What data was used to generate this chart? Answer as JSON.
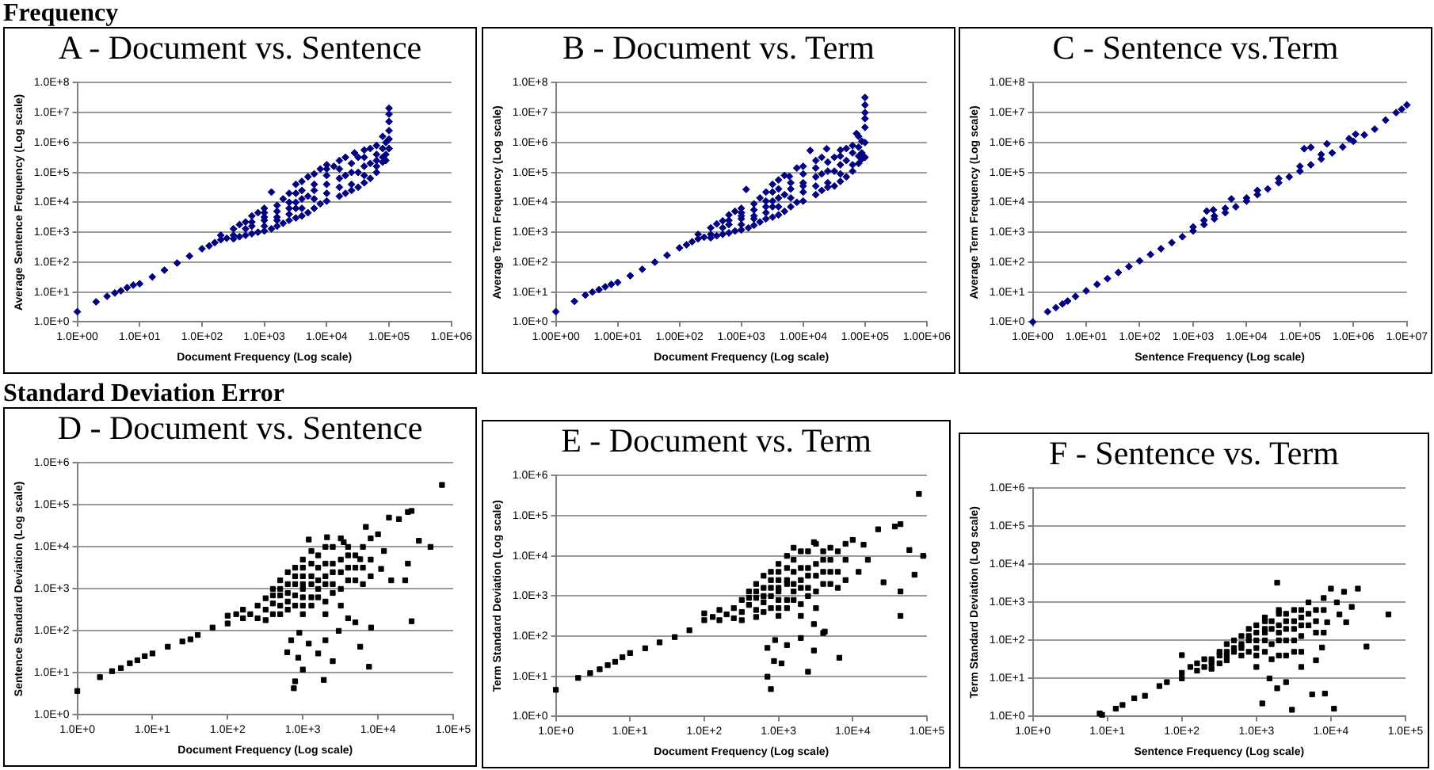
{
  "chart_data": [
    {
      "type": "scatter",
      "title": "A - Document vs. Sentence",
      "annotations": [
        "Frequency"
      ],
      "xlabel": "Document Frequency (Log scale)",
      "ylabel": "Average Sentence Frequency (Log scale)",
      "log": "xy",
      "grid": "y",
      "marker": "diamond",
      "xlim": [
        1,
        1000000
      ],
      "ylim": [
        1,
        100000000
      ],
      "xticks": [
        {
          "value": 1,
          "label": "1.0E+00"
        },
        {
          "value": 10,
          "label": "1.0E+01"
        },
        {
          "value": 100,
          "label": "1.0E+02"
        },
        {
          "value": 1000,
          "label": "1.0E+03"
        },
        {
          "value": 10000,
          "label": "1.0E+04"
        },
        {
          "value": 100000,
          "label": "1.0E+05"
        },
        {
          "value": 1000000,
          "label": "1.0E+06"
        }
      ],
      "yticks": [
        {
          "value": 1,
          "label": "1.0E+0"
        },
        {
          "value": 10,
          "label": "1.0E+1"
        },
        {
          "value": 100,
          "label": "1.0E+2"
        },
        {
          "value": 1000,
          "label": "1.0E+3"
        },
        {
          "value": 10000,
          "label": "1.0E+4"
        },
        {
          "value": 100000,
          "label": "1.0E+5"
        },
        {
          "value": 1000000,
          "label": "1.0E+6"
        },
        {
          "value": 10000000,
          "label": "1.0E+7"
        },
        {
          "value": 100000000,
          "label": "1.0E+8"
        }
      ],
      "series": [
        {
          "color": "#000080",
          "x": [
            1,
            2,
            3,
            4,
            5,
            6.3,
            7.9,
            10,
            16,
            25,
            40,
            63,
            100,
            130,
            160,
            200,
            200,
            250,
            320,
            320,
            400,
            400,
            500,
            500,
            500,
            630,
            630,
            790,
            790,
            1000,
            1000,
            1000,
            1000,
            1300,
            1300,
            1600,
            1600,
            1600,
            2000,
            2000,
            2500,
            2500,
            3200,
            3200,
            3200,
            3200,
            3200,
            4000,
            4000,
            5000,
            5000,
            5000,
            6300,
            6300,
            6300,
            7900,
            7900,
            10000,
            10000,
            10000,
            10000,
            10000,
            13000,
            16000,
            16000,
            16000,
            20000,
            20000,
            20000,
            25000,
            25000,
            28000,
            32000,
            32000,
            32000,
            40000,
            40000,
            40000,
            50000,
            50000,
            50000,
            63000,
            63000,
            63000,
            79000,
            79000,
            89000,
            100000,
            100000,
            100000,
            100000,
            100000,
            100000,
            320,
            630,
            630,
            1000,
            1000,
            1600,
            1600,
            2500,
            2500,
            2500,
            4000,
            4000,
            4000,
            6300,
            6300,
            10000,
            16000,
            16000,
            25000,
            25000,
            40000,
            40000,
            63000,
            63000,
            79000,
            79000,
            89000,
            89000
          ],
          "values": [
            2.2,
            4.7,
            7.2,
            9.3,
            11,
            14,
            17,
            19,
            32,
            54,
            93,
            160,
            280,
            350,
            450,
            560,
            790,
            630,
            600,
            1300,
            710,
            1800,
            790,
            2200,
            1300,
            890,
            3500,
            1000,
            4500,
            1100,
            6300,
            2500,
            3200,
            22000,
            1300,
            7900,
            1600,
            3200,
            2000,
            13000,
            2500,
            20000,
            3000,
            40000,
            10000,
            6300,
            20000,
            3500,
            50000,
            4500,
            71000,
            16000,
            6300,
            89000,
            25000,
            8900,
            130000,
            11000,
            180000,
            40000,
            20000,
            79000,
            160000,
            16000,
            250000,
            63000,
            20000,
            320000,
            79000,
            25000,
            100000,
            450000,
            32000,
            320000,
            100000,
            45000,
            560000,
            160000,
            63000,
            630000,
            200000,
            100000,
            790000,
            250000,
            220000,
            1600000,
            400000,
            630000,
            1300000,
            2500000,
            5000000,
            8900000,
            14000000,
            790,
            1600,
            2200,
            1600,
            4500,
            2500,
            5000,
            4000,
            6300,
            10000,
            6300,
            13000,
            25000,
            13000,
            40000,
            130000,
            32000,
            130000,
            40000,
            200000,
            79000,
            320000,
            400000,
            160000,
            320000,
            630000,
            250000,
            1000000
          ]
        }
      ]
    },
    {
      "type": "scatter",
      "title": "B - Document vs. Term",
      "xlabel": "Document Frequency (Log scale)",
      "ylabel": "Average Term Frequency (Log scale)",
      "log": "xy",
      "grid": "y",
      "marker": "diamond",
      "xlim": [
        1,
        1000000
      ],
      "ylim": [
        1,
        100000000
      ],
      "xticks": [
        {
          "value": 1,
          "label": "1.00E+00"
        },
        {
          "value": 10,
          "label": "1.00E+01"
        },
        {
          "value": 100,
          "label": "1.00E+02"
        },
        {
          "value": 1000,
          "label": "1.00E+03"
        },
        {
          "value": 10000,
          "label": "1.00E+04"
        },
        {
          "value": 100000,
          "label": "1.00E+05"
        },
        {
          "value": 1000000,
          "label": "1.00E+06"
        }
      ],
      "yticks": [
        {
          "value": 1,
          "label": "1.0E+0"
        },
        {
          "value": 10,
          "label": "1.0E+1"
        },
        {
          "value": 100,
          "label": "1.0E+2"
        },
        {
          "value": 1000,
          "label": "1.0E+3"
        },
        {
          "value": 10000,
          "label": "1.0E+4"
        },
        {
          "value": 100000,
          "label": "1.0E+5"
        },
        {
          "value": 1000000,
          "label": "1.0E+6"
        },
        {
          "value": 10000000,
          "label": "1.0E+7"
        },
        {
          "value": 100000000,
          "label": "1.0E+8"
        }
      ],
      "series": [
        {
          "color": "#000080",
          "x": [
            1,
            2,
            3,
            3.9,
            5,
            6.3,
            7.9,
            10,
            16,
            25,
            40,
            63,
            100,
            130,
            160,
            200,
            200,
            250,
            320,
            320,
            400,
            400,
            500,
            500,
            500,
            630,
            630,
            790,
            790,
            1000,
            1000,
            1000,
            1000,
            1200,
            1300,
            1600,
            1600,
            1600,
            2000,
            2000,
            2500,
            2500,
            3200,
            3200,
            3200,
            3200,
            3200,
            4000,
            4000,
            5000,
            5000,
            5000,
            6000,
            6300,
            6300,
            7900,
            7900,
            10000,
            10000,
            10000,
            10000,
            10000,
            13000,
            16000,
            16000,
            16000,
            20000,
            20000,
            20000,
            24000,
            25000,
            25000,
            32000,
            32000,
            32000,
            40000,
            40000,
            40000,
            50000,
            50000,
            50000,
            63000,
            63000,
            73000,
            79000,
            79000,
            89000,
            100000,
            100000,
            100000,
            100000,
            100000,
            100000,
            100000,
            320,
            630,
            630,
            1000,
            1000,
            1600,
            1600,
            2500,
            2500,
            2500,
            4000,
            4000,
            4000,
            6300,
            6300,
            10000,
            16000,
            16000,
            25000,
            25000,
            40000,
            40000,
            63000,
            63000,
            79000,
            79000,
            89000,
            89000
          ],
          "values": [
            2.2,
            4.9,
            7.9,
            10,
            12,
            15,
            18,
            21,
            35,
            58,
            100,
            170,
            300,
            380,
            480,
            600,
            850,
            680,
            650,
            1400,
            760,
            1900,
            850,
            2400,
            1400,
            950,
            3800,
            1100,
            5000,
            1200,
            6300,
            2800,
            3500,
            27000,
            1400,
            8900,
            1700,
            3500,
            2200,
            14000,
            2800,
            22000,
            3200,
            40000,
            11000,
            7100,
            22000,
            3800,
            56000,
            5000,
            79000,
            18000,
            74000,
            7100,
            28000,
            10000,
            140000,
            11000,
            160000,
            45000,
            22000,
            89000,
            540000,
            18000,
            250000,
            71000,
            25000,
            320000,
            89000,
            620000,
            32000,
            110000,
            35000,
            320000,
            110000,
            50000,
            560000,
            180000,
            71000,
            630000,
            250000,
            110000,
            790000,
            2000000,
            200000,
            1600000,
            450000,
            320000,
            1000000,
            3200000,
            6300000,
            10000000,
            18000000,
            32000000,
            850,
            1800,
            2500,
            1800,
            4500,
            2800,
            5600,
            4500,
            7100,
            11000,
            7100,
            14000,
            28000,
            14000,
            45000,
            35000,
            35000,
            140000,
            45000,
            220000,
            89000,
            350000,
            450000,
            180000,
            350000,
            700000,
            280000,
            1100000
          ]
        }
      ]
    },
    {
      "type": "scatter",
      "title": "C - Sentence vs.Term",
      "xlabel": "Sentence Frequency (Log scale)",
      "ylabel": "Average Term Frequency (Log scale)",
      "log": "xy",
      "grid": "y",
      "marker": "diamond",
      "xlim": [
        1,
        10000000
      ],
      "ylim": [
        1,
        100000000
      ],
      "xticks": [
        {
          "value": 1,
          "label": "1.0E+00"
        },
        {
          "value": 10,
          "label": "1.0E+01"
        },
        {
          "value": 100,
          "label": "1.0E+02"
        },
        {
          "value": 1000,
          "label": "1.0E+03"
        },
        {
          "value": 10000,
          "label": "1.0E+04"
        },
        {
          "value": 100000,
          "label": "1.0E+05"
        },
        {
          "value": 1000000,
          "label": "1.0E+06"
        },
        {
          "value": 10000000,
          "label": "1.0E+07"
        }
      ],
      "yticks": [
        {
          "value": 1,
          "label": "1.0E+0"
        },
        {
          "value": 10,
          "label": "1.0E+1"
        },
        {
          "value": 100,
          "label": "1.0E+2"
        },
        {
          "value": 1000,
          "label": "1.0E+3"
        },
        {
          "value": 10000,
          "label": "1.0E+4"
        },
        {
          "value": 100000,
          "label": "1.0E+5"
        },
        {
          "value": 1000000,
          "label": "1.0E+6"
        },
        {
          "value": 10000000,
          "label": "1.0E+7"
        },
        {
          "value": 100000000,
          "label": "1.0E+8"
        }
      ],
      "series": [
        {
          "color": "#000080",
          "x": [
            1,
            1.9,
            2.7,
            3.6,
            4.5,
            6.3,
            10,
            16,
            25,
            40,
            63,
            100,
            160,
            250,
            400,
            630,
            1000,
            1000,
            1600,
            1600,
            1800,
            2400,
            2500,
            2500,
            4000,
            4000,
            5200,
            6300,
            10000,
            10000,
            16000,
            16000,
            25000,
            40000,
            40000,
            63000,
            100000,
            100000,
            120000,
            160000,
            160000,
            250000,
            250000,
            320000,
            400000,
            630000,
            830000,
            1000000,
            1100000,
            1600000,
            2500000,
            4000000,
            6300000,
            8000000,
            10000000
          ],
          "values": [
            1,
            2.2,
            3,
            4,
            5,
            7.1,
            11,
            18,
            28,
            45,
            71,
            110,
            180,
            280,
            450,
            710,
            1100,
            1500,
            1800,
            2500,
            5100,
            5600,
            2800,
            3500,
            4500,
            6300,
            13000,
            7100,
            11000,
            14000,
            18000,
            25000,
            28000,
            45000,
            63000,
            71000,
            110000,
            160000,
            620000,
            690000,
            180000,
            280000,
            400000,
            900000,
            450000,
            710000,
            1350000,
            1100000,
            1900000,
            1800000,
            2800000,
            5600000,
            10000000,
            13000000,
            18000000
          ]
        }
      ]
    },
    {
      "type": "scatter",
      "title": "D - Document vs. Sentence",
      "annotations": [
        "Standard Deviation Error"
      ],
      "xlabel": "Document Frequency (Log scale)",
      "ylabel": "Sentence Standard Deviation (Log scale)",
      "log": "xy",
      "grid": "y",
      "marker": "square",
      "xlim": [
        1,
        100000
      ],
      "ylim": [
        1,
        1000000
      ],
      "xticks": [
        {
          "value": 1,
          "label": "1.0E+0"
        },
        {
          "value": 10,
          "label": "1.0E+1"
        },
        {
          "value": 100,
          "label": "1.0E+2"
        },
        {
          "value": 1000,
          "label": "1.0E+3"
        },
        {
          "value": 10000,
          "label": "1.0E+4"
        },
        {
          "value": 100000,
          "label": "1.0E+5"
        }
      ],
      "yticks": [
        {
          "value": 1,
          "label": "1.0E+0"
        },
        {
          "value": 10,
          "label": "1.0E+1"
        },
        {
          "value": 100,
          "label": "1.0E+2"
        },
        {
          "value": 1000,
          "label": "1.0E+3"
        },
        {
          "value": 10000,
          "label": "1.0E+4"
        },
        {
          "value": 100000,
          "label": "1.0E+5"
        },
        {
          "value": 1000000,
          "label": "1.0E+6"
        }
      ],
      "series": [
        {
          "color": "#000000",
          "x": [
            1,
            2,
            2.9,
            3.8,
            5,
            6.3,
            7.9,
            10,
            16,
            25,
            32,
            40,
            63,
            100,
            100,
            130,
            160,
            160,
            200,
            250,
            250,
            320,
            320,
            400,
            400,
            400,
            500,
            500,
            500,
            630,
            630,
            630,
            790,
            790,
            1000,
            1000,
            1000,
            1000,
            1300,
            1300,
            1300,
            1600,
            1600,
            2000,
            2000,
            2000,
            2500,
            2500,
            3200,
            3200,
            4000,
            4000,
            5000,
            6300,
            6300,
            790,
            760,
            620,
            870,
            1000,
            1600,
            1900,
            2500,
            7600,
            8100,
            5800,
            700,
            900,
            1200,
            2000,
            3000,
            4000,
            5000,
            14000,
            19000,
            25000,
            28000,
            35000,
            50000,
            25000,
            23000,
            28000,
            71000,
            6900,
            5800,
            11000,
            15000,
            3500,
            2100,
            1200,
            10000,
            12000,
            8000,
            320,
            400,
            500,
            500,
            630,
            630,
            790,
            790,
            790,
            1000,
            1000,
            1000,
            1000,
            1300,
            1300,
            1300,
            1600,
            1600,
            1600,
            2000,
            2000,
            2000,
            2500,
            2500,
            2500,
            3200,
            3200,
            3200,
            4000,
            4000,
            5000,
            5000,
            6300,
            8000,
            8000
          ],
          "values": [
            3.7,
            7.9,
            11,
            13,
            17,
            20,
            25,
            29,
            42,
            56,
            63,
            80,
            120,
            150,
            230,
            250,
            200,
            320,
            250,
            400,
            200,
            320,
            600,
            450,
            1000,
            250,
            700,
            1600,
            400,
            500,
            1300,
            2500,
            700,
            3200,
            1000,
            5000,
            400,
            2000,
            1300,
            8000,
            630,
            3200,
            1000,
            2000,
            10000,
            500,
            4000,
            1300,
            2500,
            16000,
            6300,
            1600,
            3200,
            10000,
            1300,
            6.3,
            4.3,
            31,
            23,
            12,
            29,
            6.8,
            19,
            14,
            120,
            42,
            60,
            90,
            50,
            60,
            100,
            200,
            160,
            50000,
            46000,
            68000,
            72000,
            14000,
            10000,
            4000,
            1600,
            170,
            300000,
            30000,
            5100,
            3000,
            1600,
            13000,
            17000,
            15000,
            20000,
            8000,
            5000,
            180,
            700,
            1000,
            250,
            800,
            320,
            1300,
            400,
            2000,
            630,
            1300,
            3200,
            250,
            2000,
            4000,
            400,
            630,
            1600,
            6300,
            1300,
            4000,
            250,
            2500,
            800,
            10000,
            1000,
            5000,
            400,
            3200,
            10000,
            1600,
            6300,
            3200,
            2000,
            16000
          ]
        }
      ]
    },
    {
      "type": "scatter",
      "title": "E - Document vs. Term",
      "xlabel": "Document Frequency (Log scale)",
      "ylabel": "Term Standard Deviation (Log scale)",
      "log": "xy",
      "grid": "y",
      "marker": "square",
      "xlim": [
        1,
        100000
      ],
      "ylim": [
        1,
        1000000
      ],
      "xticks": [
        {
          "value": 1,
          "label": "1.0E+0"
        },
        {
          "value": 10,
          "label": "1.0E+1"
        },
        {
          "value": 100,
          "label": "1.0E+2"
        },
        {
          "value": 1000,
          "label": "1.0E+3"
        },
        {
          "value": 10000,
          "label": "1.0E+4"
        },
        {
          "value": 100000,
          "label": "1.0E+5"
        }
      ],
      "yticks": [
        {
          "value": 1,
          "label": "1.0E+0"
        },
        {
          "value": 10,
          "label": "1.0E+1"
        },
        {
          "value": 100,
          "label": "1.0E+2"
        },
        {
          "value": 1000,
          "label": "1.0E+3"
        },
        {
          "value": 10000,
          "label": "1.0E+4"
        },
        {
          "value": 100000,
          "label": "1.0E+5"
        },
        {
          "value": 1000000,
          "label": "1.0E+6"
        }
      ],
      "series": [
        {
          "color": "#000000",
          "x": [
            1,
            2,
            2.9,
            3.9,
            5,
            6.3,
            7.9,
            10,
            16,
            25,
            40,
            63,
            100,
            100,
            130,
            160,
            160,
            200,
            250,
            250,
            320,
            320,
            400,
            400,
            500,
            500,
            500,
            630,
            630,
            630,
            790,
            790,
            1000,
            1000,
            1000,
            1000,
            1300,
            1300,
            1300,
            1600,
            1600,
            2000,
            2000,
            2000,
            2500,
            2500,
            3200,
            3200,
            4000,
            4000,
            5000,
            6300,
            6300,
            710,
            790,
            870,
            1100,
            2500,
            3000,
            6600,
            4200,
            710,
            900,
            1300,
            2000,
            3000,
            4000,
            78000,
            44000,
            37000,
            22000,
            14000,
            58000,
            89000,
            68000,
            44000,
            44000,
            26000,
            10000,
            8000,
            12000,
            5000,
            3000,
            1600,
            16000,
            320,
            400,
            500,
            500,
            630,
            630,
            790,
            790,
            790,
            1000,
            1000,
            1000,
            1000,
            1300,
            1300,
            1300,
            1600,
            1600,
            1600,
            2000,
            2000,
            2000,
            2500,
            2500,
            2500,
            3200,
            3200,
            3200,
            4000,
            4000,
            5000,
            5000,
            6300,
            8000,
            8000
          ],
          "values": [
            4.6,
            9.1,
            12,
            15,
            19,
            23,
            30,
            38,
            50,
            70,
            95,
            140,
            250,
            370,
            300,
            250,
            450,
            350,
            500,
            280,
            400,
            800,
            600,
            1300,
            900,
            2000,
            450,
            700,
            1600,
            3200,
            1000,
            4000,
            1300,
            6300,
            500,
            2500,
            2000,
            10000,
            800,
            4000,
            1300,
            2500,
            13000,
            630,
            5000,
            1600,
            3200,
            20000,
            8000,
            2000,
            4000,
            13000,
            1600,
            9.8,
            4.8,
            24,
            21,
            13,
            44,
            29,
            130,
            51,
            80,
            60,
            90,
            200,
            120,
            350000,
            62000,
            54000,
            46000,
            19000,
            14000,
            10000,
            3400,
            1300,
            320,
            2200,
            25000,
            8000,
            4000,
            16000,
            22000,
            16000,
            8000,
            250,
            900,
            1300,
            300,
            1000,
            400,
            1600,
            500,
            2500,
            800,
            1600,
            4000,
            320,
            2500,
            5000,
            500,
            800,
            2000,
            8000,
            1600,
            5000,
            320,
            3200,
            1000,
            13000,
            1300,
            6300,
            500,
            4000,
            13000,
            2000,
            8000,
            4000,
            2500,
            20000
          ]
        }
      ]
    },
    {
      "type": "scatter",
      "title": "F - Sentence vs. Term",
      "xlabel": "Sentence Frequency (Log scale)",
      "ylabel": "Term Standard Deviation (Log scale)",
      "log": "xy",
      "grid": "y",
      "marker": "square",
      "xlim": [
        1,
        100000
      ],
      "ylim": [
        1,
        1000000
      ],
      "xticks": [
        {
          "value": 1,
          "label": "1.0E+0"
        },
        {
          "value": 10,
          "label": "1.0E+1"
        },
        {
          "value": 100,
          "label": "1.0E+2"
        },
        {
          "value": 1000,
          "label": "1.0E+3"
        },
        {
          "value": 10000,
          "label": "1.0E+4"
        },
        {
          "value": 100000,
          "label": "1.0E+5"
        }
      ],
      "yticks": [
        {
          "value": 1,
          "label": "1.0E+0"
        },
        {
          "value": 10,
          "label": "1.0E+1"
        },
        {
          "value": 100,
          "label": "1.0E+2"
        },
        {
          "value": 1000,
          "label": "1.0E+3"
        },
        {
          "value": 10000,
          "label": "1.0E+4"
        },
        {
          "value": 100000,
          "label": "1.0E+5"
        },
        {
          "value": 1000000,
          "label": "1.0E+6"
        }
      ],
      "series": [
        {
          "color": "#000000",
          "x": [
            7.9,
            8.5,
            13,
            16,
            23,
            32,
            50,
            63,
            100,
            100,
            100,
            160,
            160,
            200,
            250,
            250,
            320,
            320,
            400,
            400,
            500,
            500,
            630,
            630,
            790,
            790,
            1000,
            1000,
            1000,
            1300,
            1300,
            1300,
            1600,
            1600,
            2000,
            2000,
            2000,
            2500,
            2500,
            3200,
            3200,
            3200,
            4000,
            4000,
            5000,
            5000,
            6300,
            6300,
            1900,
            10000,
            15000,
            23000,
            19000,
            59000,
            30000,
            11000,
            3000,
            1200,
            1900,
            5600,
            8300,
            7600,
            13000,
            8900,
            1500,
            2500,
            4000,
            6300,
            1000,
            12000,
            16000,
            8000,
            130,
            200,
            250,
            320,
            400,
            400,
            500,
            630,
            630,
            790,
            790,
            1000,
            1000,
            1300,
            1300,
            1300,
            1600,
            1600,
            2000,
            2000,
            2000,
            2500,
            2500,
            2500,
            3200,
            3200,
            4000,
            4000,
            4000,
            5000,
            6300,
            8000,
            8000
          ],
          "values": [
            1.2,
            1.1,
            1.6,
            2,
            3,
            3.5,
            6.3,
            8,
            14,
            10,
            41,
            16,
            25,
            20,
            32,
            18,
            40,
            25,
            50,
            30,
            63,
            100,
            80,
            40,
            130,
            50,
            160,
            63,
            250,
            200,
            100,
            400,
            320,
            80,
            500,
            160,
            40,
            320,
            100,
            630,
            200,
            50,
            400,
            130,
            250,
            1000,
            630,
            160,
            3300,
            2300,
            1900,
            2300,
            760,
            480,
            69,
            1.6,
            1.5,
            2.2,
            5.5,
            3.8,
            4,
            65,
            480,
            300,
            10,
            8,
            20,
            30,
            20,
            1000,
            300,
            1300,
            20,
            32,
            25,
            50,
            40,
            80,
            50,
            63,
            130,
            100,
            200,
            100,
            40,
            160,
            50,
            320,
            200,
            32,
            250,
            100,
            630,
            200,
            500,
            40,
            320,
            100,
            250,
            630,
            50,
            500,
            320,
            160,
            630
          ]
        }
      ]
    }
  ]
}
